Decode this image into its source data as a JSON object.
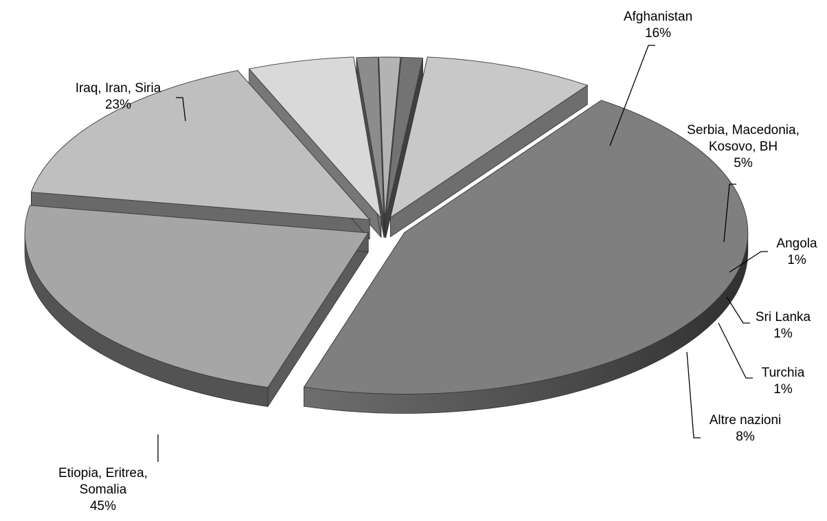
{
  "chart_data": {
    "type": "pie",
    "title": "",
    "style": "3d-exploded",
    "slices": [
      {
        "label": "Etiopia, Eritrea, Somalia",
        "label_lines": [
          "Etiopia, Eritrea,",
          "Somalia"
        ],
        "value": 45,
        "value_label": "45%",
        "color": "#7f7f7f"
      },
      {
        "label": "Iraq, Iran, Siria",
        "label_lines": [
          "Iraq, Iran, Siria"
        ],
        "value": 23,
        "value_label": "23%",
        "color": "#a6a6a6"
      },
      {
        "label": "Afghanistan",
        "label_lines": [
          "Afghanistan"
        ],
        "value": 16,
        "value_label": "16%",
        "color": "#bfbfbf"
      },
      {
        "label": "Serbia, Macedonia, Kosovo, BH",
        "label_lines": [
          "Serbia,  Macedonia,",
          "Kosovo, BH"
        ],
        "value": 5,
        "value_label": "5%",
        "color": "#d9d9d9"
      },
      {
        "label": "Angola",
        "label_lines": [
          "Angola"
        ],
        "value": 1,
        "value_label": "1%",
        "color": "#8c8c8c"
      },
      {
        "label": "Sri Lanka",
        "label_lines": [
          "Sri Lanka"
        ],
        "value": 1,
        "value_label": "1%",
        "color": "#b3b3b3"
      },
      {
        "label": "Turchia",
        "label_lines": [
          "Turchia"
        ],
        "value": 1,
        "value_label": "1%",
        "color": "#737373"
      },
      {
        "label": "Altre nazioni",
        "label_lines": [
          "Altre nazioni"
        ],
        "value": 8,
        "value_label": "8%",
        "color": "#c8c8c8"
      }
    ]
  }
}
